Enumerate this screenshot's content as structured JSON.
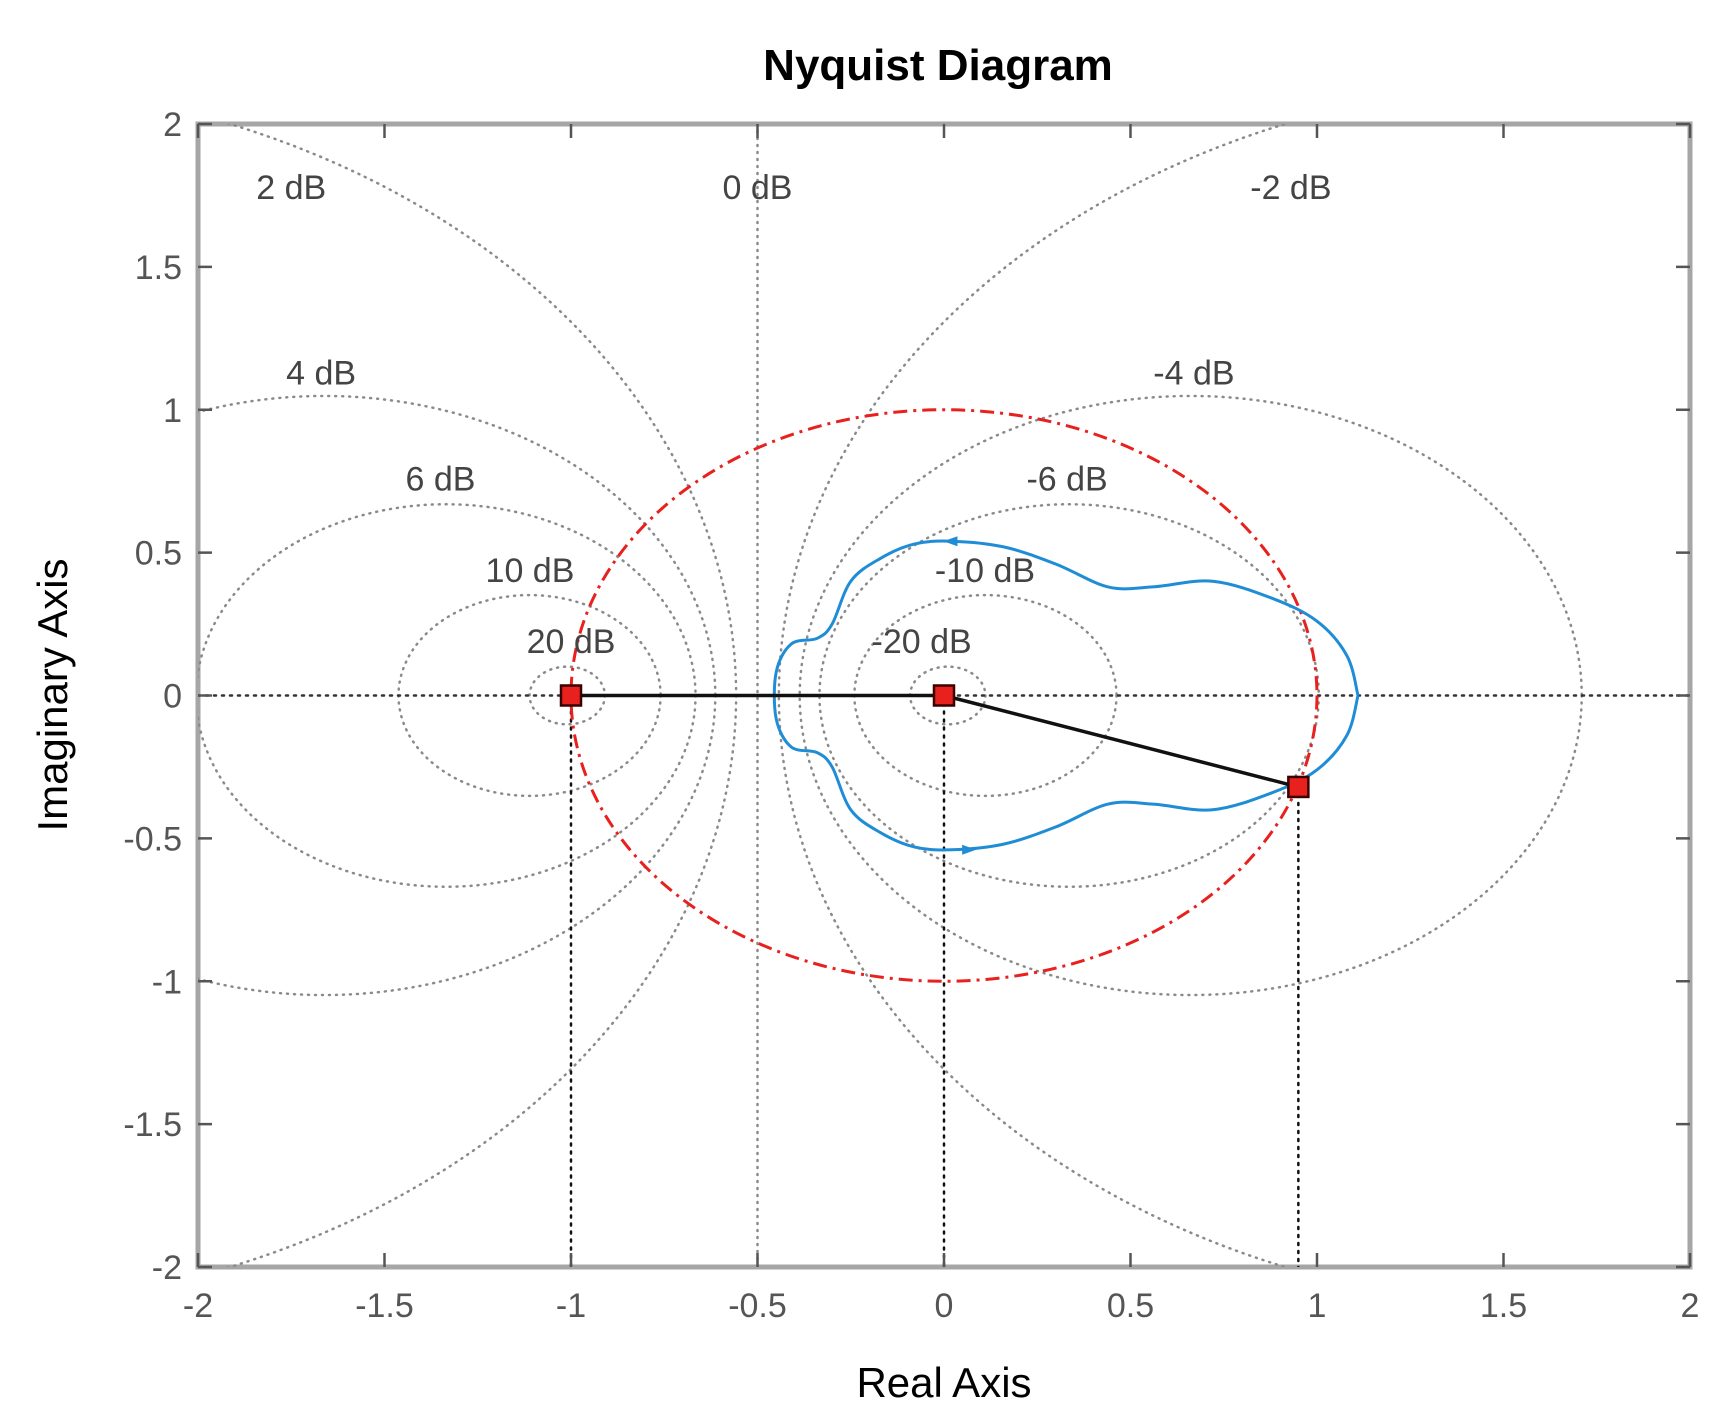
{
  "chart_data": {
    "type": "line",
    "title": "Nyquist Diagram",
    "xlabel": "Real Axis",
    "ylabel": "Imaginary Axis",
    "xlim": [
      -2,
      2
    ],
    "ylim": [
      -2,
      2
    ],
    "x_ticks": [
      "-2",
      "-1.5",
      "-1",
      "-0.5",
      "0",
      "0.5",
      "1",
      "1.5",
      "2"
    ],
    "y_ticks": [
      "2",
      "1.5",
      "1",
      "0.5",
      "0",
      "-0.5",
      "-1",
      "-1.5",
      "-2"
    ],
    "grid": "M-circles (constant-gain contours)",
    "db_labels": [
      {
        "text": "2 dB",
        "x": -1.75,
        "y": 1.78
      },
      {
        "text": "0 dB",
        "x": -0.5,
        "y": 1.78
      },
      {
        "text": "-2 dB",
        "x": 0.93,
        "y": 1.78
      },
      {
        "text": "4 dB",
        "x": -1.67,
        "y": 1.13
      },
      {
        "text": "-4 dB",
        "x": 0.67,
        "y": 1.13
      },
      {
        "text": "6 dB",
        "x": -1.35,
        "y": 0.76
      },
      {
        "text": "-6 dB",
        "x": 0.33,
        "y": 0.76
      },
      {
        "text": "10 dB",
        "x": -1.11,
        "y": 0.44
      },
      {
        "text": "-10 dB",
        "x": 0.11,
        "y": 0.44
      },
      {
        "text": "20 dB",
        "x": -1.0,
        "y": 0.19
      },
      {
        "text": "-20 dB",
        "x": -0.06,
        "y": 0.19
      }
    ],
    "contours_db": [
      2,
      -2,
      4,
      -4,
      6,
      -6,
      10,
      -10,
      20,
      -20
    ],
    "unit_circle": {
      "center": [
        0,
        0
      ],
      "radius": 1,
      "color": "#e8201e",
      "style": "dash-dot"
    },
    "series": [
      {
        "color": "#1f8dd6",
        "x": [
          1.11,
          1.08,
          1.0,
          0.88,
          0.72,
          0.56,
          0.44,
          0.3,
          0.16,
          0.02,
          -0.08,
          -0.17,
          -0.25,
          -0.3,
          -0.34,
          -0.41,
          -0.45,
          -0.45,
          -0.41,
          -0.34,
          -0.3,
          -0.25,
          -0.17,
          -0.08,
          0.02,
          0.16,
          0.3,
          0.44,
          0.56,
          0.72,
          0.88,
          1.0,
          1.08,
          1.11
        ],
        "y": [
          0.0,
          0.14,
          0.26,
          0.34,
          0.4,
          0.38,
          0.38,
          0.46,
          0.52,
          0.54,
          0.53,
          0.48,
          0.4,
          0.25,
          0.2,
          0.18,
          0.08,
          -0.08,
          -0.18,
          -0.2,
          -0.25,
          -0.4,
          -0.48,
          -0.53,
          -0.54,
          -0.52,
          -0.46,
          -0.38,
          -0.38,
          -0.4,
          -0.34,
          -0.26,
          -0.14,
          0.0
        ]
      }
    ],
    "points": [
      {
        "x": -1.0,
        "y": 0.0,
        "color": "#e8201e"
      },
      {
        "x": 0.0,
        "y": 0.0,
        "color": "#e8201e"
      },
      {
        "x": 0.95,
        "y": -0.32,
        "color": "#e8201e"
      }
    ],
    "segments": [
      {
        "from": [
          -1.0,
          0.0
        ],
        "to": [
          0.0,
          0.0
        ]
      },
      {
        "from": [
          0.0,
          0.0
        ],
        "to": [
          0.95,
          -0.32
        ]
      }
    ],
    "drop_lines_x": [
      -1.0,
      0.0,
      0.95
    ],
    "arrows": [
      {
        "x": 0.02,
        "y": 0.54
      },
      {
        "x": 0.07,
        "y": -0.54
      }
    ]
  }
}
